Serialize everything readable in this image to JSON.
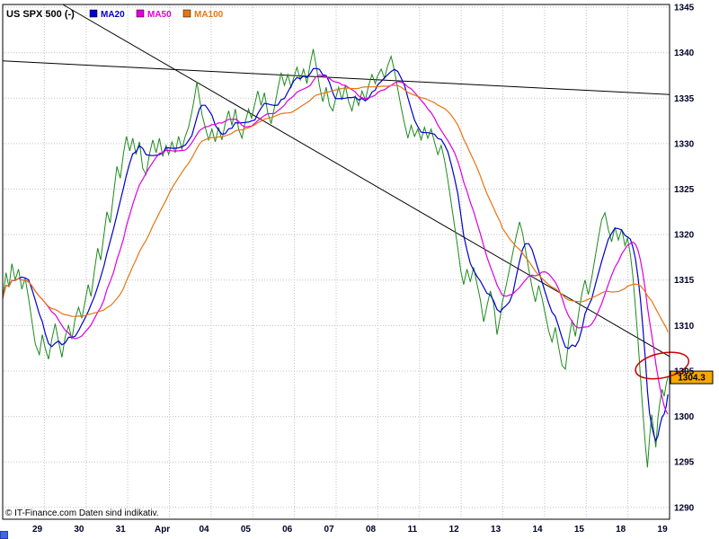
{
  "title": "US SPX 500 (-)",
  "legend": [
    {
      "label": "MA20",
      "color": "#0000cc"
    },
    {
      "label": "MA50",
      "color": "#dd00dd"
    },
    {
      "label": "MA100",
      "color": "#e87511"
    }
  ],
  "copyright": "© IT-Finance.com Daten sind indikativ.",
  "colors": {
    "price": "#1c8a1c",
    "grid": "#c0c0c0",
    "trendline": "#000000",
    "border": "#000000",
    "price_tag_bg": "#f5a800",
    "annotation": "#cc0000",
    "scroll_corner": "#4466dd"
  },
  "chart_data": {
    "type": "line",
    "title": "US SPX 500 (-)",
    "x_categories": [
      "29",
      "30",
      "31",
      "Apr",
      "04",
      "05",
      "06",
      "07",
      "08",
      "11",
      "12",
      "13",
      "14",
      "15",
      "18",
      "19"
    ],
    "y_ticks": [
      1345,
      1340,
      1335,
      1330,
      1325,
      1320,
      1315,
      1310,
      1305,
      1300,
      1295,
      1290
    ],
    "xlim": [
      0,
      16
    ],
    "ylim": [
      1288.7,
      1345.3
    ],
    "grid": true,
    "legend_position": "top-left",
    "last_price": 1304.3,
    "trendlines": [
      {
        "name": "steep-downtrend",
        "from": [
          1.44,
          1345.3
        ],
        "to": [
          16,
          1306.6
        ]
      },
      {
        "name": "shallow-downtrend",
        "from": [
          0,
          1339.1
        ],
        "to": [
          16,
          1335.4
        ]
      }
    ],
    "annotation_ellipse": {
      "cx": 15.82,
      "cy": 1305.6,
      "rx_days": 0.65,
      "ry_points": 1.35,
      "rotate_deg": -12
    },
    "moving_averages": [
      {
        "name": "MA20",
        "window": 6
      },
      {
        "name": "MA50",
        "window": 14
      },
      {
        "name": "MA100",
        "window": 28
      }
    ],
    "series": [
      {
        "name": "US SPX 500",
        "points": [
          [
            0.0,
            1313.0
          ],
          [
            0.08,
            1315.8
          ],
          [
            0.15,
            1314.2
          ],
          [
            0.22,
            1316.8
          ],
          [
            0.3,
            1315.0
          ],
          [
            0.38,
            1316.2
          ],
          [
            0.46,
            1314.0
          ],
          [
            0.54,
            1315.2
          ],
          [
            0.62,
            1313.0
          ],
          [
            0.7,
            1310.5
          ],
          [
            0.78,
            1308.0
          ],
          [
            0.88,
            1306.8
          ],
          [
            0.95,
            1309.0
          ],
          [
            1.02,
            1307.5
          ],
          [
            1.1,
            1306.3
          ],
          [
            1.18,
            1308.5
          ],
          [
            1.26,
            1310.2
          ],
          [
            1.34,
            1308.3
          ],
          [
            1.42,
            1306.5
          ],
          [
            1.5,
            1308.8
          ],
          [
            1.58,
            1310.0
          ],
          [
            1.66,
            1308.5
          ],
          [
            1.74,
            1310.8
          ],
          [
            1.82,
            1312.0
          ],
          [
            1.9,
            1310.8
          ],
          [
            1.97,
            1312.5
          ],
          [
            2.05,
            1314.5
          ],
          [
            2.12,
            1313.2
          ],
          [
            2.2,
            1316.0
          ],
          [
            2.28,
            1318.5
          ],
          [
            2.35,
            1317.2
          ],
          [
            2.43,
            1320.0
          ],
          [
            2.5,
            1322.5
          ],
          [
            2.58,
            1321.3
          ],
          [
            2.66,
            1324.5
          ],
          [
            2.74,
            1327.5
          ],
          [
            2.82,
            1326.2
          ],
          [
            2.9,
            1329.0
          ],
          [
            2.97,
            1330.8
          ],
          [
            3.05,
            1329.2
          ],
          [
            3.12,
            1330.6
          ],
          [
            3.2,
            1328.8
          ],
          [
            3.28,
            1330.2
          ],
          [
            3.36,
            1327.3
          ],
          [
            3.44,
            1326.6
          ],
          [
            3.52,
            1328.8
          ],
          [
            3.6,
            1330.4
          ],
          [
            3.68,
            1329.0
          ],
          [
            3.76,
            1330.6
          ],
          [
            3.84,
            1328.6
          ],
          [
            3.92,
            1329.8
          ],
          [
            3.98,
            1328.8
          ],
          [
            4.06,
            1330.2
          ],
          [
            4.14,
            1329.0
          ],
          [
            4.22,
            1330.8
          ],
          [
            4.3,
            1329.4
          ],
          [
            4.38,
            1330.8
          ],
          [
            4.46,
            1331.8
          ],
          [
            4.54,
            1333.5
          ],
          [
            4.6,
            1335.0
          ],
          [
            4.66,
            1336.8
          ],
          [
            4.72,
            1335.0
          ],
          [
            4.78,
            1333.2
          ],
          [
            4.86,
            1331.8
          ],
          [
            4.94,
            1330.4
          ],
          [
            5.02,
            1331.6
          ],
          [
            5.1,
            1330.2
          ],
          [
            5.18,
            1331.8
          ],
          [
            5.26,
            1330.4
          ],
          [
            5.34,
            1332.2
          ],
          [
            5.42,
            1333.6
          ],
          [
            5.5,
            1332.0
          ],
          [
            5.58,
            1333.8
          ],
          [
            5.66,
            1331.6
          ],
          [
            5.74,
            1330.6
          ],
          [
            5.82,
            1332.4
          ],
          [
            5.9,
            1333.8
          ],
          [
            5.97,
            1332.8
          ],
          [
            6.05,
            1334.4
          ],
          [
            6.12,
            1335.8
          ],
          [
            6.2,
            1334.2
          ],
          [
            6.28,
            1335.6
          ],
          [
            6.36,
            1333.4
          ],
          [
            6.44,
            1332.2
          ],
          [
            6.52,
            1334.0
          ],
          [
            6.6,
            1336.0
          ],
          [
            6.68,
            1337.8
          ],
          [
            6.76,
            1336.4
          ],
          [
            6.84,
            1337.6
          ],
          [
            6.92,
            1336.2
          ],
          [
            6.98,
            1337.2
          ],
          [
            7.06,
            1338.4
          ],
          [
            7.14,
            1337.0
          ],
          [
            7.22,
            1338.2
          ],
          [
            7.3,
            1336.6
          ],
          [
            7.38,
            1338.8
          ],
          [
            7.45,
            1340.4
          ],
          [
            7.52,
            1338.6
          ],
          [
            7.6,
            1336.4
          ],
          [
            7.68,
            1334.6
          ],
          [
            7.76,
            1336.2
          ],
          [
            7.84,
            1334.2
          ],
          [
            7.92,
            1333.6
          ],
          [
            7.98,
            1334.8
          ],
          [
            8.06,
            1336.2
          ],
          [
            8.14,
            1334.8
          ],
          [
            8.22,
            1336.4
          ],
          [
            8.3,
            1334.6
          ],
          [
            8.38,
            1333.6
          ],
          [
            8.46,
            1335.2
          ],
          [
            8.54,
            1334.2
          ],
          [
            8.62,
            1335.8
          ],
          [
            8.7,
            1334.8
          ],
          [
            8.78,
            1336.4
          ],
          [
            8.86,
            1337.6
          ],
          [
            8.94,
            1336.6
          ],
          [
            8.99,
            1337.4
          ],
          [
            9.08,
            1338.2
          ],
          [
            9.16,
            1337.2
          ],
          [
            9.24,
            1338.6
          ],
          [
            9.32,
            1339.6
          ],
          [
            9.4,
            1338.0
          ],
          [
            9.48,
            1336.0
          ],
          [
            9.56,
            1334.0
          ],
          [
            9.64,
            1332.2
          ],
          [
            9.72,
            1330.6
          ],
          [
            9.8,
            1332.0
          ],
          [
            9.88,
            1330.8
          ],
          [
            9.96,
            1331.6
          ],
          [
            10.04,
            1330.4
          ],
          [
            10.12,
            1331.8
          ],
          [
            10.2,
            1330.6
          ],
          [
            10.28,
            1331.6
          ],
          [
            10.36,
            1330.2
          ],
          [
            10.44,
            1328.8
          ],
          [
            10.52,
            1329.8
          ],
          [
            10.6,
            1328.2
          ],
          [
            10.68,
            1326.0
          ],
          [
            10.76,
            1323.5
          ],
          [
            10.84,
            1321.0
          ],
          [
            10.92,
            1318.5
          ],
          [
            10.99,
            1316.0
          ],
          [
            11.06,
            1314.5
          ],
          [
            11.14,
            1316.2
          ],
          [
            11.22,
            1314.8
          ],
          [
            11.3,
            1316.4
          ],
          [
            11.38,
            1314.6
          ],
          [
            11.46,
            1312.8
          ],
          [
            11.54,
            1310.4
          ],
          [
            11.62,
            1312.2
          ],
          [
            11.7,
            1313.8
          ],
          [
            11.78,
            1312.4
          ],
          [
            11.86,
            1309.0
          ],
          [
            11.94,
            1311.0
          ],
          [
            11.99,
            1312.6
          ],
          [
            12.08,
            1314.4
          ],
          [
            12.16,
            1316.2
          ],
          [
            12.24,
            1318.0
          ],
          [
            12.32,
            1319.8
          ],
          [
            12.4,
            1321.4
          ],
          [
            12.47,
            1320.2
          ],
          [
            12.54,
            1318.4
          ],
          [
            12.62,
            1316.2
          ],
          [
            12.7,
            1314.2
          ],
          [
            12.78,
            1312.6
          ],
          [
            12.86,
            1314.4
          ],
          [
            12.94,
            1313.0
          ],
          [
            13.02,
            1311.2
          ],
          [
            13.1,
            1309.4
          ],
          [
            13.18,
            1308.2
          ],
          [
            13.26,
            1309.8
          ],
          [
            13.34,
            1307.6
          ],
          [
            13.42,
            1305.6
          ],
          [
            13.5,
            1305.2
          ],
          [
            13.58,
            1308.4
          ],
          [
            13.66,
            1310.6
          ],
          [
            13.74,
            1308.8
          ],
          [
            13.82,
            1311.4
          ],
          [
            13.9,
            1313.6
          ],
          [
            13.97,
            1315.0
          ],
          [
            14.05,
            1313.4
          ],
          [
            14.13,
            1315.2
          ],
          [
            14.21,
            1317.4
          ],
          [
            14.29,
            1319.6
          ],
          [
            14.37,
            1321.6
          ],
          [
            14.45,
            1322.4
          ],
          [
            14.53,
            1320.6
          ],
          [
            14.61,
            1319.2
          ],
          [
            14.69,
            1320.8
          ],
          [
            14.77,
            1319.4
          ],
          [
            14.85,
            1320.6
          ],
          [
            14.93,
            1318.8
          ],
          [
            14.99,
            1319.6
          ],
          [
            15.06,
            1317.8
          ],
          [
            15.12,
            1315.4
          ],
          [
            15.18,
            1312.0
          ],
          [
            15.24,
            1308.5
          ],
          [
            15.3,
            1304.5
          ],
          [
            15.36,
            1300.5
          ],
          [
            15.42,
            1296.8
          ],
          [
            15.47,
            1294.4
          ],
          [
            15.52,
            1297.6
          ],
          [
            15.57,
            1300.2
          ],
          [
            15.62,
            1298.4
          ],
          [
            15.67,
            1296.6
          ],
          [
            15.72,
            1299.8
          ],
          [
            15.77,
            1301.6
          ],
          [
            15.82,
            1303.0
          ],
          [
            15.87,
            1302.2
          ],
          [
            15.92,
            1303.6
          ],
          [
            15.96,
            1304.3
          ]
        ]
      }
    ]
  }
}
